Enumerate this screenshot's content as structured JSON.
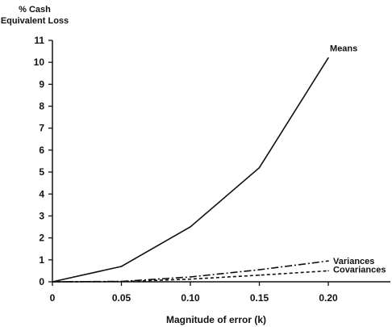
{
  "chart_data": {
    "type": "line",
    "ylabel_lines": [
      "% Cash",
      "Equivalent Loss"
    ],
    "xlabel": "Magnitude of error (k)",
    "x": [
      0,
      0.05,
      0.1,
      0.15,
      0.2
    ],
    "x_tick_labels": [
      "0",
      "0.05",
      "0.10",
      "0.15",
      "0.20"
    ],
    "y_ticks": [
      0,
      1,
      2,
      3,
      4,
      5,
      6,
      7,
      8,
      9,
      10,
      11
    ],
    "ylim": [
      0,
      11
    ],
    "xlim": [
      0,
      0.245
    ],
    "grid": false,
    "series": [
      {
        "name": "Means",
        "values": [
          0,
          0.7,
          2.5,
          5.2,
          10.2
        ],
        "style": "solid"
      },
      {
        "name": "Variances",
        "values": [
          0,
          0.02,
          0.22,
          0.55,
          0.95
        ],
        "style": "dashdot"
      },
      {
        "name": "Covariances",
        "values": [
          0,
          0.01,
          0.12,
          0.3,
          0.5
        ],
        "style": "dashed"
      }
    ]
  }
}
